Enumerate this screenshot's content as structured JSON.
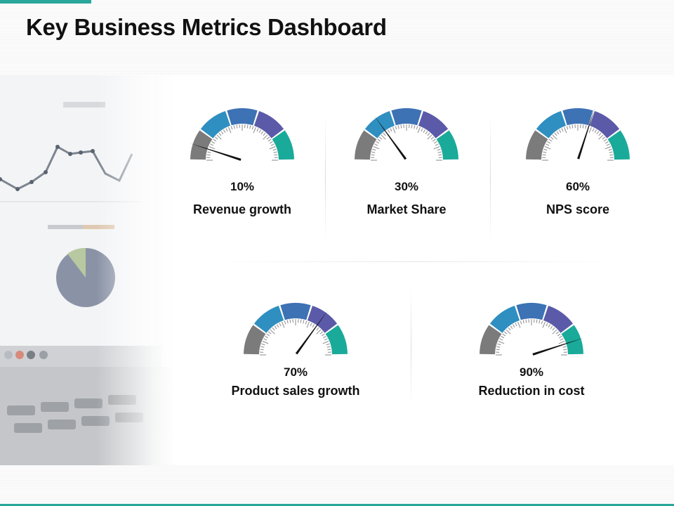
{
  "title": "Key Business Metrics Dashboard",
  "colors": {
    "accent": "#2aa79b",
    "segment_gray": "#7b7b7b",
    "segment_blue": "#2f8fc0",
    "segment_indigo": "#3d72b4",
    "segment_purple": "#5b5aa9",
    "segment_teal": "#1aaa9a"
  },
  "gauges": [
    {
      "value_label": "10%",
      "value": 10,
      "label": "Revenue growth"
    },
    {
      "value_label": "30%",
      "value": 30,
      "label": "Market Share"
    },
    {
      "value_label": "60%",
      "value": 60,
      "label": "NPS score"
    },
    {
      "value_label": "70%",
      "value": 70,
      "label": "Product sales growth"
    },
    {
      "value_label": "90%",
      "value": 90,
      "label": "Reduction in cost"
    }
  ]
}
